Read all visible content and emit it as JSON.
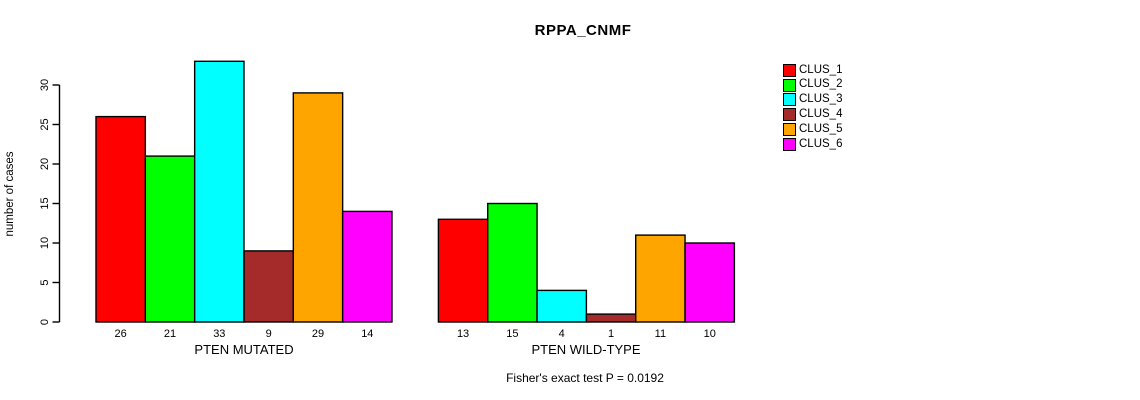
{
  "chart_data": {
    "type": "bar",
    "title": "RPPA_CNMF",
    "ylabel": "number of cases",
    "xlabel": "",
    "footer": "Fisher's exact test P = 0.0192",
    "ylim": [
      0,
      30
    ],
    "yticks": [
      0,
      5,
      10,
      15,
      20,
      25,
      30
    ],
    "grid": false,
    "legend_position": "right",
    "bar_value_labels_shown": true,
    "series": [
      {
        "name": "CLUS_1",
        "color": "#FF0000"
      },
      {
        "name": "CLUS_2",
        "color": "#00FF00"
      },
      {
        "name": "CLUS_3",
        "color": "#00FFFF"
      },
      {
        "name": "CLUS_4",
        "color": "#A52A2A"
      },
      {
        "name": "CLUS_5",
        "color": "#FFA500"
      },
      {
        "name": "CLUS_6",
        "color": "#FF00FF"
      }
    ],
    "groups": [
      {
        "label": "PTEN MUTATED",
        "values": [
          26,
          21,
          33,
          9,
          29,
          14
        ]
      },
      {
        "label": "PTEN WILD-TYPE",
        "values": [
          13,
          15,
          4,
          1,
          11,
          10
        ]
      }
    ]
  }
}
